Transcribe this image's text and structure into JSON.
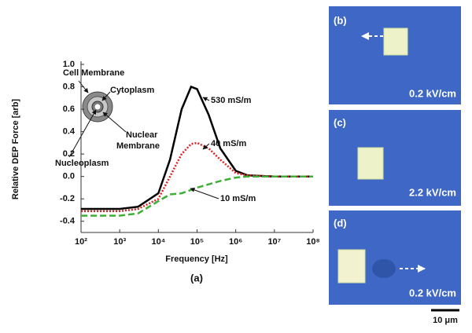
{
  "chart_data": {
    "type": "line",
    "xlabel": "Frequency [Hz]",
    "ylabel": "Relative DEP Force [arb]",
    "panel_label": "(a)",
    "log_x": true,
    "xlim": [
      100,
      100000000
    ],
    "xticks": [
      {
        "value": 100,
        "label": "10²"
      },
      {
        "value": 1000,
        "label": "10³"
      },
      {
        "value": 10000,
        "label": "10⁴"
      },
      {
        "value": 100000,
        "label": "10⁵"
      },
      {
        "value": 1000000,
        "label": "10⁶"
      },
      {
        "value": 10000000,
        "label": "10⁷"
      },
      {
        "value": 100000000,
        "label": "10⁸"
      }
    ],
    "ylim": [
      -0.5,
      1.0
    ],
    "yticks": [
      {
        "value": 1,
        "label": "1.0"
      },
      0.8,
      0.6,
      0.4,
      0.2,
      {
        "value": 0,
        "label": "0.0"
      },
      -0.2,
      -0.4
    ],
    "x": [
      100,
      1000,
      3000,
      10000,
      20000,
      40000,
      70000,
      100000,
      200000,
      400000,
      1000000,
      2000000,
      10000000,
      100000000
    ],
    "series": [
      {
        "name": "530 mS/m",
        "color": "#000000",
        "line_style": "solid",
        "values": [
          -0.29,
          -0.29,
          -0.27,
          -0.15,
          0.15,
          0.6,
          0.8,
          0.78,
          0.55,
          0.25,
          0.05,
          0.01,
          0,
          0
        ]
      },
      {
        "name": "40 mS/m",
        "color": "#e02020",
        "line_style": "dotted",
        "values": [
          -0.31,
          -0.31,
          -0.29,
          -0.2,
          0.0,
          0.2,
          0.29,
          0.3,
          0.25,
          0.15,
          0.03,
          0.01,
          0,
          0
        ]
      },
      {
        "name": "10 mS/m",
        "color": "#3cb034",
        "line_style": "dashed",
        "values": [
          -0.35,
          -0.35,
          -0.33,
          -0.22,
          -0.16,
          -0.15,
          -0.12,
          -0.1,
          -0.07,
          -0.04,
          -0.01,
          0,
          0,
          0
        ]
      }
    ],
    "annotations": [
      "Cell Membrane",
      "Cytoplasm",
      [
        "Nuclear",
        "Membrane"
      ],
      "Nucleoplasm"
    ]
  },
  "panels": [
    {
      "label": "(b)",
      "field": "0.2 kV/cm"
    },
    {
      "label": "(c)",
      "field": "2.2 kV/cm"
    },
    {
      "label": "(d)",
      "field": "0.2 kV/cm"
    }
  ],
  "scale_bar": "10 μm"
}
